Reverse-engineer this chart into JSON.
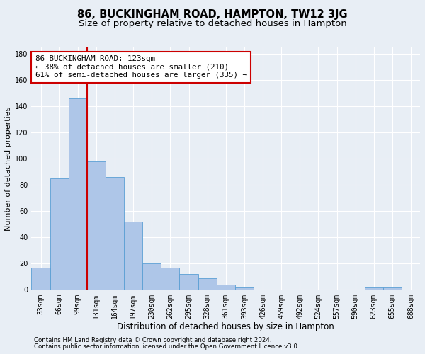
{
  "title": "86, BUCKINGHAM ROAD, HAMPTON, TW12 3JG",
  "subtitle": "Size of property relative to detached houses in Hampton",
  "xlabel": "Distribution of detached houses by size in Hampton",
  "ylabel": "Number of detached properties",
  "footnote1": "Contains HM Land Registry data © Crown copyright and database right 2024.",
  "footnote2": "Contains public sector information licensed under the Open Government Licence v3.0.",
  "bin_labels": [
    "33sqm",
    "66sqm",
    "99sqm",
    "131sqm",
    "164sqm",
    "197sqm",
    "230sqm",
    "262sqm",
    "295sqm",
    "328sqm",
    "361sqm",
    "393sqm",
    "426sqm",
    "459sqm",
    "492sqm",
    "524sqm",
    "557sqm",
    "590sqm",
    "623sqm",
    "655sqm",
    "688sqm"
  ],
  "bar_values": [
    17,
    85,
    146,
    98,
    86,
    52,
    20,
    17,
    12,
    9,
    4,
    2,
    0,
    0,
    0,
    0,
    0,
    0,
    2,
    2,
    0
  ],
  "bar_color": "#aec6e8",
  "bar_edgecolor": "#5a9fd4",
  "vline_color": "#cc0000",
  "vline_x": 2.5,
  "annotation_line1": "86 BUCKINGHAM ROAD: 123sqm",
  "annotation_line2": "← 38% of detached houses are smaller (210)",
  "annotation_line3": "61% of semi-detached houses are larger (335) →",
  "annotation_box_color": "#ffffff",
  "annotation_box_edgecolor": "#cc0000",
  "ylim": [
    0,
    185
  ],
  "yticks": [
    0,
    20,
    40,
    60,
    80,
    100,
    120,
    140,
    160,
    180
  ],
  "background_color": "#e8eef5",
  "grid_color": "#ffffff",
  "title_fontsize": 10.5,
  "subtitle_fontsize": 9.5,
  "xlabel_fontsize": 8.5,
  "ylabel_fontsize": 8,
  "tick_fontsize": 7,
  "annotation_fontsize": 7.8,
  "footnote_fontsize": 6.2
}
